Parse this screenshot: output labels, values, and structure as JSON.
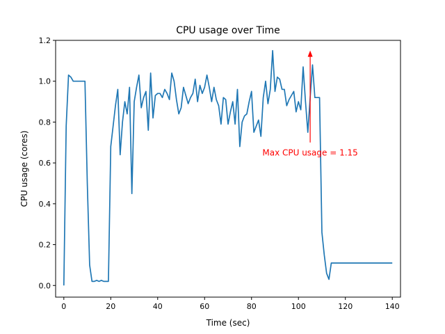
{
  "chart_data": {
    "type": "line",
    "title": "CPU usage over Time",
    "xlabel": "Time (sec)",
    "ylabel": "CPU usage (cores)",
    "xlim": [
      -3.5,
      143.5
    ],
    "ylim": [
      -0.057,
      1.2
    ],
    "xticks": [
      0,
      20,
      40,
      60,
      80,
      100,
      120,
      140
    ],
    "xtick_labels": [
      "0",
      "20",
      "40",
      "60",
      "80",
      "100",
      "120",
      "140"
    ],
    "yticks": [
      0.0,
      0.2,
      0.4,
      0.6,
      0.8,
      1.0,
      1.2
    ],
    "ytick_labels": [
      "0.0",
      "0.2",
      "0.4",
      "0.6",
      "0.8",
      "1.0",
      "1.2"
    ],
    "grid": false,
    "line_color": "#1f77b4",
    "series": [
      {
        "name": "CPU usage",
        "x": [
          0,
          1,
          2,
          3,
          4,
          5,
          6,
          7,
          8,
          9,
          10,
          11,
          12,
          13,
          14,
          15,
          16,
          17,
          18,
          19,
          20,
          21,
          22,
          23,
          24,
          25,
          26,
          27,
          28,
          29,
          30,
          31,
          32,
          33,
          34,
          35,
          36,
          37,
          38,
          39,
          40,
          41,
          42,
          43,
          44,
          45,
          46,
          47,
          48,
          49,
          50,
          51,
          52,
          53,
          54,
          55,
          56,
          57,
          58,
          59,
          60,
          61,
          62,
          63,
          64,
          65,
          66,
          67,
          68,
          69,
          70,
          71,
          72,
          73,
          74,
          75,
          76,
          77,
          78,
          79,
          80,
          81,
          82,
          83,
          84,
          85,
          86,
          87,
          88,
          89,
          90,
          91,
          92,
          93,
          94,
          95,
          96,
          97,
          98,
          99,
          100,
          101,
          102,
          103,
          104,
          105,
          106,
          107,
          108,
          109,
          110,
          111,
          112,
          113,
          114,
          115,
          116,
          117,
          118,
          119,
          120,
          121,
          122,
          123,
          124,
          125,
          126,
          127,
          128,
          129,
          130,
          131,
          132,
          133,
          134,
          135,
          136,
          137,
          138,
          139,
          140
        ],
        "values": [
          0.0,
          0.78,
          1.03,
          1.02,
          1.0,
          1.0,
          1.0,
          1.0,
          1.0,
          1.0,
          0.5,
          0.1,
          0.02,
          0.02,
          0.025,
          0.02,
          0.025,
          0.02,
          0.02,
          0.02,
          0.68,
          0.78,
          0.88,
          0.96,
          0.64,
          0.8,
          0.9,
          0.84,
          0.97,
          0.45,
          0.9,
          0.97,
          1.03,
          0.87,
          0.92,
          0.95,
          0.76,
          1.04,
          0.82,
          0.93,
          0.94,
          0.94,
          0.92,
          0.96,
          0.94,
          0.91,
          1.04,
          1.0,
          0.91,
          0.84,
          0.87,
          0.97,
          0.93,
          0.89,
          0.92,
          0.94,
          1.01,
          0.9,
          0.98,
          0.94,
          0.97,
          1.03,
          0.97,
          0.9,
          0.97,
          0.91,
          0.88,
          0.79,
          0.92,
          0.91,
          0.79,
          0.85,
          0.9,
          0.79,
          0.96,
          0.68,
          0.8,
          0.83,
          0.84,
          0.9,
          0.95,
          0.75,
          0.78,
          0.81,
          0.73,
          0.92,
          1.0,
          0.89,
          0.96,
          1.15,
          0.95,
          1.02,
          1.01,
          0.96,
          0.96,
          0.88,
          0.91,
          0.93,
          0.95,
          0.85,
          0.9,
          0.86,
          1.07,
          0.9,
          0.75,
          0.92,
          1.08,
          0.92,
          0.92,
          0.92,
          0.26,
          0.15,
          0.06,
          0.03,
          0.11,
          0.11,
          0.11,
          0.11,
          0.11,
          0.11,
          0.11,
          0.11,
          0.11,
          0.11,
          0.11,
          0.11,
          0.11,
          0.11,
          0.11,
          0.11,
          0.11,
          0.11,
          0.11,
          0.11,
          0.11,
          0.11,
          0.11,
          0.11,
          0.11,
          0.11,
          0.11
        ]
      }
    ],
    "annotation": {
      "text": "Max CPU usage = 1.15",
      "color": "#ff0000",
      "xy": [
        105,
        1.15
      ],
      "xytext": [
        105,
        0.7
      ],
      "text_anchor_data": [
        105,
        0.65
      ]
    }
  }
}
